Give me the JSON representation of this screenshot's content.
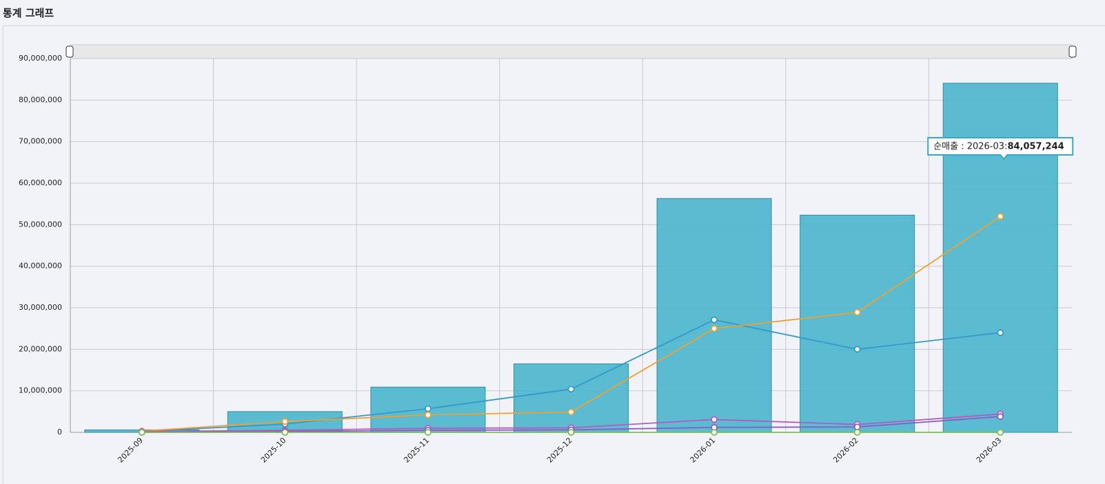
{
  "header": {
    "title": "통계 그래프"
  },
  "chart_data": {
    "type": "bar-line",
    "categories": [
      "2025-09",
      "2025-10",
      "2025-11",
      "2025-12",
      "2026-01",
      "2026-02",
      "2026-03"
    ],
    "series": [
      {
        "name": "순매출",
        "type": "bar",
        "color": "#4ab5cc",
        "values": [
          600000,
          5000000,
          10900000,
          16500000,
          56300000,
          52300000,
          84057244
        ],
        "value_labels": [
          null,
          null,
          null,
          null,
          null,
          null,
          "84,057,244"
        ]
      },
      {
        "type": "line",
        "color": "#3399cc",
        "values": [
          200000,
          2000000,
          5700000,
          10400000,
          27100000,
          20000000,
          24000000
        ]
      },
      {
        "type": "line",
        "color": "#f0a030",
        "values": [
          300000,
          2600000,
          4200000,
          4900000,
          25000000,
          28900000,
          52000000
        ]
      },
      {
        "type": "line",
        "color": "#b55ac2",
        "values": [
          200000,
          500000,
          1000000,
          1100000,
          3100000,
          1900000,
          4400000
        ]
      },
      {
        "type": "line",
        "color": "#8a5cc4",
        "values": [
          0,
          200000,
          500000,
          600000,
          1200000,
          1300000,
          3800000
        ]
      },
      {
        "type": "line",
        "color": "#7cc050",
        "values": [
          0,
          0,
          0,
          0,
          0,
          0,
          0
        ]
      }
    ],
    "ylim": [
      0,
      90000000
    ],
    "yticks": [
      0,
      {
        "value": 10000000,
        "label": "10,000,000"
      },
      {
        "value": 20000000,
        "label": "20,000,000"
      },
      {
        "value": 30000000,
        "label": "30,000,000"
      },
      {
        "value": 40000000,
        "label": "40,000,000"
      },
      {
        "value": 50000000,
        "label": "50,000,000"
      },
      {
        "value": 60000000,
        "label": "60,000,000"
      },
      {
        "value": 70000000,
        "label": "70,000,000"
      },
      {
        "value": 80000000,
        "label": "80,000,000"
      },
      {
        "value": 90000000,
        "label": "90,000,000"
      }
    ],
    "grid": true,
    "tooltip": {
      "label": "순매출 : 2026-03:"
    }
  }
}
